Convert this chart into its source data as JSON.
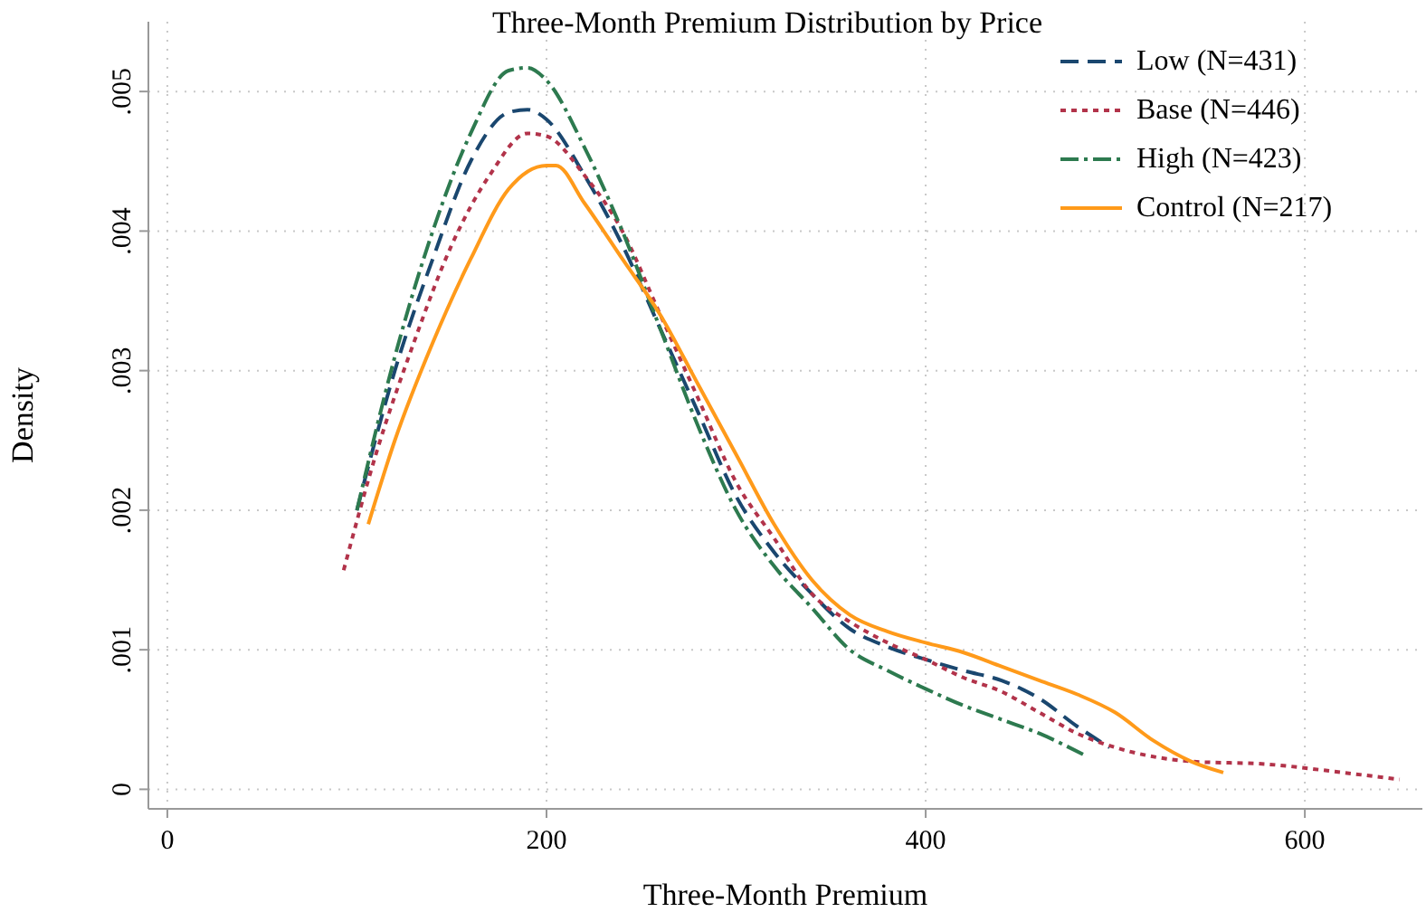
{
  "chart_data": {
    "type": "line",
    "title": "Three-Month Premium Distribution by Price",
    "xlabel": "Three-Month Premium",
    "ylabel": "Density",
    "xlim": [
      -10,
      662
    ],
    "ylim": [
      -0.00014,
      0.0055
    ],
    "xticks": [
      0,
      200,
      400,
      600
    ],
    "yticks": [
      {
        "value": 0,
        "label": "0"
      },
      {
        "value": 0.001,
        "label": ".001"
      },
      {
        "value": 0.002,
        "label": ".002"
      },
      {
        "value": 0.003,
        "label": ".003"
      },
      {
        "value": 0.004,
        "label": ".004"
      },
      {
        "value": 0.005,
        "label": ".005"
      }
    ],
    "grid": true,
    "legend": "top right",
    "marker": "none",
    "series": [
      {
        "name": "Low (N=431)",
        "color": "#1a476f",
        "line_style": "dashed",
        "x": [
          100,
          120,
          140,
          160,
          180,
          190,
          200,
          220,
          240,
          260,
          280,
          300,
          320,
          340,
          360,
          380,
          400,
          420,
          440,
          460,
          480,
          497
        ],
        "values": [
          0.002,
          0.003,
          0.0038,
          0.0045,
          0.00485,
          0.00487,
          0.0048,
          0.0044,
          0.0039,
          0.0033,
          0.0027,
          0.0021,
          0.0017,
          0.0014,
          0.00115,
          0.00102,
          0.00093,
          0.00085,
          0.00078,
          0.00065,
          0.00045,
          0.0003
        ]
      },
      {
        "name": "Base (N=446)",
        "color": "#b2334a",
        "line_style": "dotted",
        "x": [
          93,
          110,
          130,
          150,
          170,
          190,
          200,
          220,
          240,
          260,
          280,
          300,
          320,
          340,
          360,
          380,
          400,
          420,
          440,
          460,
          480,
          500,
          540,
          580,
          620,
          650
        ],
        "values": [
          0.00157,
          0.0024,
          0.0032,
          0.0039,
          0.0044,
          0.0047,
          0.00468,
          0.0044,
          0.004,
          0.0034,
          0.0028,
          0.0022,
          0.0018,
          0.0014,
          0.0012,
          0.00105,
          0.00093,
          0.0008,
          0.0007,
          0.00055,
          0.0004,
          0.0003,
          0.0002,
          0.00018,
          0.00012,
          7e-05
        ]
      },
      {
        "name": "High (N=423)",
        "color": "#2d7a4f",
        "line_style": "dashdot",
        "x": [
          100,
          120,
          140,
          160,
          180,
          190,
          200,
          220,
          240,
          260,
          280,
          300,
          320,
          340,
          360,
          380,
          400,
          420,
          440,
          460,
          483
        ],
        "values": [
          0.002,
          0.0031,
          0.004,
          0.0047,
          0.00515,
          0.00517,
          0.00508,
          0.0046,
          0.004,
          0.0033,
          0.0026,
          0.002,
          0.0016,
          0.0013,
          0.001,
          0.00085,
          0.00072,
          0.0006,
          0.0005,
          0.0004,
          0.00025
        ]
      },
      {
        "name": "Control (N=217)",
        "color": "#ff9a1a",
        "line_style": "solid",
        "x": [
          106,
          120,
          140,
          160,
          180,
          200,
          205,
          220,
          240,
          260,
          280,
          300,
          320,
          340,
          360,
          380,
          400,
          420,
          440,
          460,
          480,
          500,
          520,
          540,
          557
        ],
        "values": [
          0.0019,
          0.0025,
          0.0032,
          0.0038,
          0.0043,
          0.00447,
          0.00447,
          0.0042,
          0.0038,
          0.0034,
          0.0029,
          0.0024,
          0.0019,
          0.0015,
          0.00125,
          0.00113,
          0.00105,
          0.00098,
          0.00088,
          0.00078,
          0.00068,
          0.00055,
          0.00035,
          0.0002,
          0.00012
        ]
      }
    ]
  }
}
